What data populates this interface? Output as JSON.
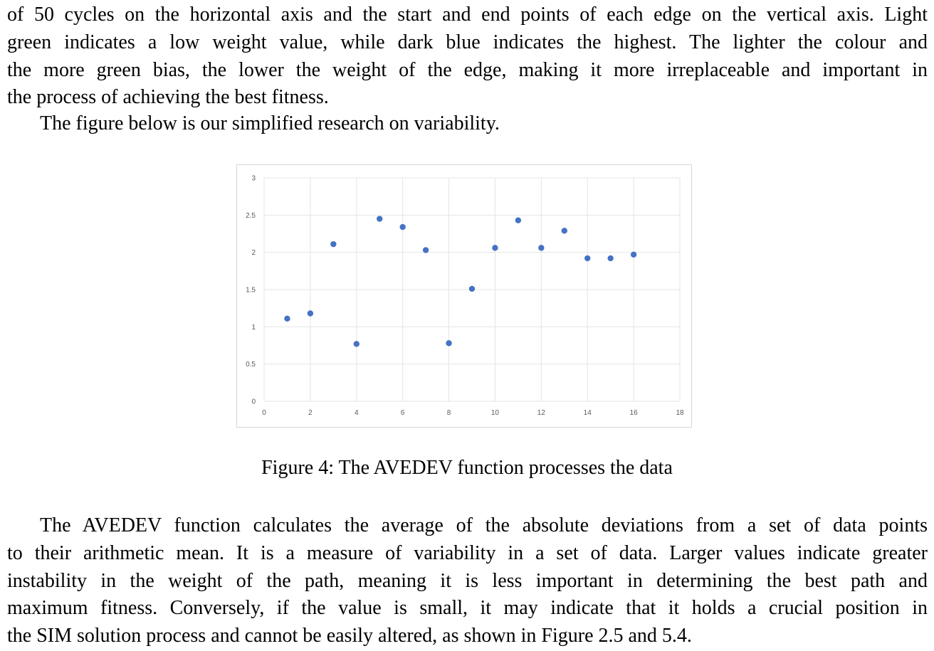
{
  "text_top": [
    "of 50 cycles on the horizontal axis and the start and end points of each edge on the vertical axis. Light",
    "green indicates a low weight value, while dark blue indicates the highest. The lighter the colour and",
    "the more green bias, the lower the weight of the edge, making it more irreplaceable and important in",
    "the process of achieving the best fitness."
  ],
  "intro": "The figure below is our simplified research on variability.",
  "caption": "Figure 4: The AVEDEV function processes the data",
  "text_bottom": [
    "The AVEDEV function calculates the average of the absolute deviations from a set of data points",
    "to their arithmetic mean. It is a measure of variability in a set of data. Larger values indicate greater",
    "instability in the weight of the path, meaning it is less important in determining the best path and",
    "maximum fitness. Conversely, if the value is small, it may indicate that it holds a crucial position in",
    "the SIM solution process and cannot be easily altered, as shown in Figure 2.5 and 5.4."
  ],
  "chart_data": {
    "type": "scatter",
    "title": "",
    "xlabel": "",
    "ylabel": "",
    "xlim": [
      0,
      18
    ],
    "ylim": [
      0,
      3
    ],
    "x_ticks": [
      "0",
      "2",
      "4",
      "6",
      "8",
      "10",
      "12",
      "14",
      "16",
      "18"
    ],
    "y_ticks": [
      "0",
      "0.5",
      "1",
      "1.5",
      "2",
      "2.5",
      "3"
    ],
    "grid": true,
    "marker_color": "#4472c4",
    "series": [
      {
        "x": [
          1,
          2,
          3,
          4,
          5,
          6,
          7,
          8,
          9,
          10,
          11,
          12,
          13,
          14,
          15,
          16
        ],
        "y": [
          1.11,
          1.18,
          2.11,
          0.77,
          2.45,
          2.34,
          2.03,
          0.78,
          1.51,
          2.06,
          2.43,
          2.06,
          2.29,
          1.92,
          1.92,
          1.97
        ]
      }
    ]
  }
}
